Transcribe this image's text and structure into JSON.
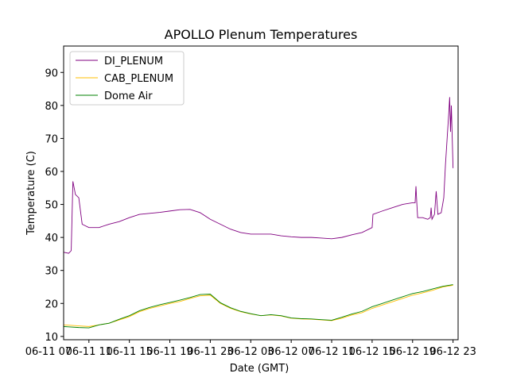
{
  "chart_data": {
    "type": "line",
    "title": "APOLLO Plenum Temperatures",
    "xlabel": "Date (GMT)",
    "ylabel": "Temperature (C)",
    "x_axis": "date",
    "xlim": [
      "2016-06-11 08:30",
      "2016-06-12 23:30"
    ],
    "ylim": [
      9,
      98
    ],
    "xticks": [
      {
        "x": "2016-06-11 07:00",
        "label": "06-11 07"
      },
      {
        "x": "2016-06-11 11:00",
        "label": "06-11 11"
      },
      {
        "x": "2016-06-11 15:00",
        "label": "06-11 15"
      },
      {
        "x": "2016-06-11 19:00",
        "label": "06-11 19"
      },
      {
        "x": "2016-06-11 23:00",
        "label": "06-11 23"
      },
      {
        "x": "2016-06-12 03:00",
        "label": "06-12 03"
      },
      {
        "x": "2016-06-12 07:00",
        "label": "06-12 07"
      },
      {
        "x": "2016-06-12 11:00",
        "label": "06-12 11"
      },
      {
        "x": "2016-06-12 15:00",
        "label": "06-12 15"
      },
      {
        "x": "2016-06-12 19:00",
        "label": "06-12 19"
      },
      {
        "x": "2016-06-12 23:00",
        "label": "06-12 23"
      }
    ],
    "yticks": [
      10,
      20,
      30,
      40,
      50,
      60,
      70,
      80,
      90
    ],
    "grid": false,
    "legend_position": "upper left",
    "series": [
      {
        "name": "DI_PLENUM",
        "color": "#800080",
        "points": [
          [
            "2016-06-11 08:30",
            35.5
          ],
          [
            "2016-06-11 09:00",
            35.2
          ],
          [
            "2016-06-11 09:15",
            36.0
          ],
          [
            "2016-06-11 09:25",
            57.0
          ],
          [
            "2016-06-11 09:40",
            53.0
          ],
          [
            "2016-06-11 10:00",
            52.0
          ],
          [
            "2016-06-11 10:20",
            44.0
          ],
          [
            "2016-06-11 11:00",
            43.0
          ],
          [
            "2016-06-11 12:00",
            43.0
          ],
          [
            "2016-06-11 13:00",
            44.0
          ],
          [
            "2016-06-11 14:00",
            44.8
          ],
          [
            "2016-06-11 15:00",
            46.0
          ],
          [
            "2016-06-11 16:00",
            47.0
          ],
          [
            "2016-06-11 17:00",
            47.3
          ],
          [
            "2016-06-11 18:00",
            47.6
          ],
          [
            "2016-06-11 19:00",
            48.0
          ],
          [
            "2016-06-11 20:00",
            48.4
          ],
          [
            "2016-06-11 21:00",
            48.5
          ],
          [
            "2016-06-11 22:00",
            47.5
          ],
          [
            "2016-06-11 23:00",
            45.5
          ],
          [
            "2016-06-12 00:00",
            44.0
          ],
          [
            "2016-06-12 01:00",
            42.5
          ],
          [
            "2016-06-12 02:00",
            41.5
          ],
          [
            "2016-06-12 03:00",
            41.0
          ],
          [
            "2016-06-12 04:00",
            41.0
          ],
          [
            "2016-06-12 05:00",
            41.0
          ],
          [
            "2016-06-12 06:00",
            40.5
          ],
          [
            "2016-06-12 07:00",
            40.2
          ],
          [
            "2016-06-12 08:00",
            40.0
          ],
          [
            "2016-06-12 09:00",
            40.0
          ],
          [
            "2016-06-12 10:00",
            39.8
          ],
          [
            "2016-06-12 11:00",
            39.6
          ],
          [
            "2016-06-12 12:00",
            40.0
          ],
          [
            "2016-06-12 13:00",
            40.8
          ],
          [
            "2016-06-12 14:00",
            41.5
          ],
          [
            "2016-06-12 15:00",
            43.0
          ],
          [
            "2016-06-12 15:05",
            47.0
          ],
          [
            "2016-06-12 16:00",
            48.0
          ],
          [
            "2016-06-12 17:00",
            49.0
          ],
          [
            "2016-06-12 18:00",
            50.0
          ],
          [
            "2016-06-12 19:00",
            50.5
          ],
          [
            "2016-06-12 19:15",
            50.5
          ],
          [
            "2016-06-12 19:20",
            55.5
          ],
          [
            "2016-06-12 19:25",
            50.5
          ],
          [
            "2016-06-12 19:30",
            46.0
          ],
          [
            "2016-06-12 20:00",
            46.0
          ],
          [
            "2016-06-12 20:30",
            45.5
          ],
          [
            "2016-06-12 20:45",
            46.0
          ],
          [
            "2016-06-12 20:50",
            49.0
          ],
          [
            "2016-06-12 20:55",
            45.5
          ],
          [
            "2016-06-12 21:10",
            47.0
          ],
          [
            "2016-06-12 21:20",
            54.0
          ],
          [
            "2016-06-12 21:30",
            47.0
          ],
          [
            "2016-06-12 21:50",
            47.5
          ],
          [
            "2016-06-12 22:05",
            52.0
          ],
          [
            "2016-06-12 22:15",
            62.0
          ],
          [
            "2016-06-12 22:25",
            70.0
          ],
          [
            "2016-06-12 22:35",
            78.0
          ],
          [
            "2016-06-12 22:40",
            82.5
          ],
          [
            "2016-06-12 22:45",
            72.0
          ],
          [
            "2016-06-12 22:50",
            80.0
          ],
          [
            "2016-06-12 23:00",
            61.0
          ]
        ]
      },
      {
        "name": "CAB_PLENUM",
        "color": "#ffbf00",
        "points": [
          [
            "2016-06-11 08:30",
            13.5
          ],
          [
            "2016-06-11 09:00",
            13.4
          ],
          [
            "2016-06-11 10:00",
            13.2
          ],
          [
            "2016-06-11 11:00",
            13.0
          ],
          [
            "2016-06-11 12:00",
            13.5
          ],
          [
            "2016-06-11 13:00",
            14.0
          ],
          [
            "2016-06-11 14:00",
            15.0
          ],
          [
            "2016-06-11 15:00",
            16.0
          ],
          [
            "2016-06-11 16:00",
            17.5
          ],
          [
            "2016-06-11 17:00",
            18.5
          ],
          [
            "2016-06-11 18:00",
            19.2
          ],
          [
            "2016-06-11 19:00",
            20.0
          ],
          [
            "2016-06-11 20:00",
            20.6
          ],
          [
            "2016-06-11 21:00",
            21.5
          ],
          [
            "2016-06-11 22:00",
            22.3
          ],
          [
            "2016-06-11 23:00",
            22.5
          ],
          [
            "2016-06-12 00:00",
            20.0
          ],
          [
            "2016-06-12 01:00",
            18.5
          ],
          [
            "2016-06-12 02:00",
            17.5
          ],
          [
            "2016-06-12 03:00",
            16.8
          ],
          [
            "2016-06-12 04:00",
            16.3
          ],
          [
            "2016-06-12 05:00",
            16.5
          ],
          [
            "2016-06-12 06:00",
            16.2
          ],
          [
            "2016-06-12 07:00",
            15.5
          ],
          [
            "2016-06-12 08:00",
            15.3
          ],
          [
            "2016-06-12 09:00",
            15.2
          ],
          [
            "2016-06-12 10:00",
            15.0
          ],
          [
            "2016-06-12 11:00",
            14.8
          ],
          [
            "2016-06-12 12:00",
            15.5
          ],
          [
            "2016-06-12 13:00",
            16.5
          ],
          [
            "2016-06-12 14:00",
            17.2
          ],
          [
            "2016-06-12 15:00",
            18.5
          ],
          [
            "2016-06-12 16:00",
            19.5
          ],
          [
            "2016-06-12 17:00",
            20.5
          ],
          [
            "2016-06-12 18:00",
            21.5
          ],
          [
            "2016-06-12 19:00",
            22.5
          ],
          [
            "2016-06-12 20:00",
            23.2
          ],
          [
            "2016-06-12 21:00",
            24.0
          ],
          [
            "2016-06-12 22:00",
            25.0
          ],
          [
            "2016-06-12 23:00",
            25.5
          ]
        ]
      },
      {
        "name": "Dome Air",
        "color": "#008000",
        "points": [
          [
            "2016-06-11 08:30",
            13.0
          ],
          [
            "2016-06-11 09:00",
            12.9
          ],
          [
            "2016-06-11 10:00",
            12.7
          ],
          [
            "2016-06-11 11:00",
            12.6
          ],
          [
            "2016-06-11 12:00",
            13.5
          ],
          [
            "2016-06-11 13:00",
            14.0
          ],
          [
            "2016-06-11 14:00",
            15.2
          ],
          [
            "2016-06-11 15:00",
            16.3
          ],
          [
            "2016-06-11 16:00",
            17.8
          ],
          [
            "2016-06-11 17:00",
            18.8
          ],
          [
            "2016-06-11 18:00",
            19.6
          ],
          [
            "2016-06-11 19:00",
            20.3
          ],
          [
            "2016-06-11 20:00",
            21.0
          ],
          [
            "2016-06-11 21:00",
            21.8
          ],
          [
            "2016-06-11 22:00",
            22.7
          ],
          [
            "2016-06-11 23:00",
            22.8
          ],
          [
            "2016-06-12 00:00",
            20.2
          ],
          [
            "2016-06-12 01:00",
            18.7
          ],
          [
            "2016-06-12 02:00",
            17.6
          ],
          [
            "2016-06-12 03:00",
            16.9
          ],
          [
            "2016-06-12 04:00",
            16.3
          ],
          [
            "2016-06-12 05:00",
            16.6
          ],
          [
            "2016-06-12 06:00",
            16.3
          ],
          [
            "2016-06-12 07:00",
            15.6
          ],
          [
            "2016-06-12 08:00",
            15.4
          ],
          [
            "2016-06-12 09:00",
            15.3
          ],
          [
            "2016-06-12 10:00",
            15.1
          ],
          [
            "2016-06-12 11:00",
            14.9
          ],
          [
            "2016-06-12 12:00",
            15.8
          ],
          [
            "2016-06-12 13:00",
            16.8
          ],
          [
            "2016-06-12 14:00",
            17.6
          ],
          [
            "2016-06-12 15:00",
            19.0
          ],
          [
            "2016-06-12 16:00",
            20.0
          ],
          [
            "2016-06-12 17:00",
            21.0
          ],
          [
            "2016-06-12 18:00",
            22.0
          ],
          [
            "2016-06-12 19:00",
            23.0
          ],
          [
            "2016-06-12 20:00",
            23.6
          ],
          [
            "2016-06-12 21:00",
            24.4
          ],
          [
            "2016-06-12 22:00",
            25.2
          ],
          [
            "2016-06-12 23:00",
            25.7
          ]
        ]
      }
    ]
  }
}
